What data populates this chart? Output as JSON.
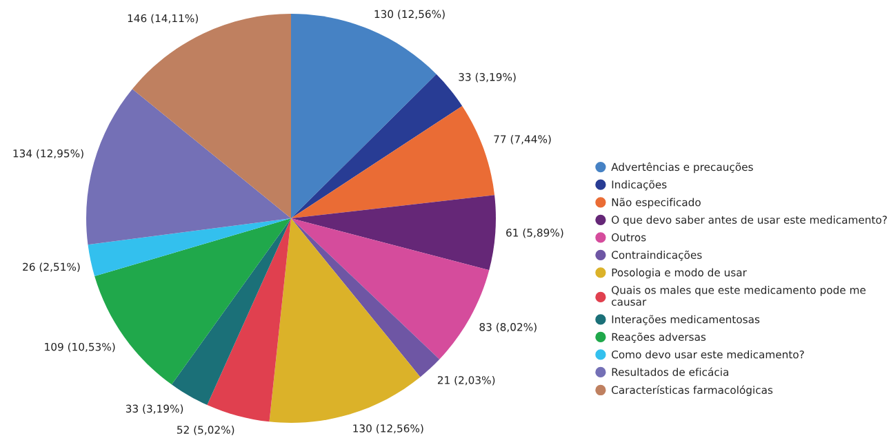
{
  "chart_data": {
    "type": "pie",
    "categories": [
      "Advertências e precauções",
      "Indicações",
      "Não especificado",
      "O que devo saber antes de usar este medicamento?",
      "Outros",
      "Contraindicações",
      "Posologia e modo de usar",
      "Quais os males que este medicamento pode me causar",
      "Interações medicamentosas",
      "Reações adversas",
      "Como devo usar este medicamento?",
      "Resultados de eficácia",
      "Características farmacológicas"
    ],
    "values": [
      130,
      33,
      77,
      61,
      83,
      21,
      130,
      52,
      33,
      109,
      26,
      134,
      146
    ],
    "value_labels": [
      "130 (12,56%)",
      "33 (3,19%)",
      "77 (7,44%)",
      "61 (5,89%)",
      "83 (8,02%)",
      "21 (2,03%)",
      "130 (12,56%)",
      "52 (5,02%)",
      "33 (3,19%)",
      "109 (10,53%)",
      "26 (2,51%)",
      "134 (12,95%)",
      "146 (14,11%)"
    ],
    "colors": [
      "#4682c4",
      "#283c94",
      "#ea6c35",
      "#652777",
      "#d54c9c",
      "#6e56a4",
      "#dbb229",
      "#e0404f",
      "#1b7078",
      "#20a84b",
      "#33c0ee",
      "#7470b6",
      "#bf8060"
    ],
    "legend": "right"
  }
}
